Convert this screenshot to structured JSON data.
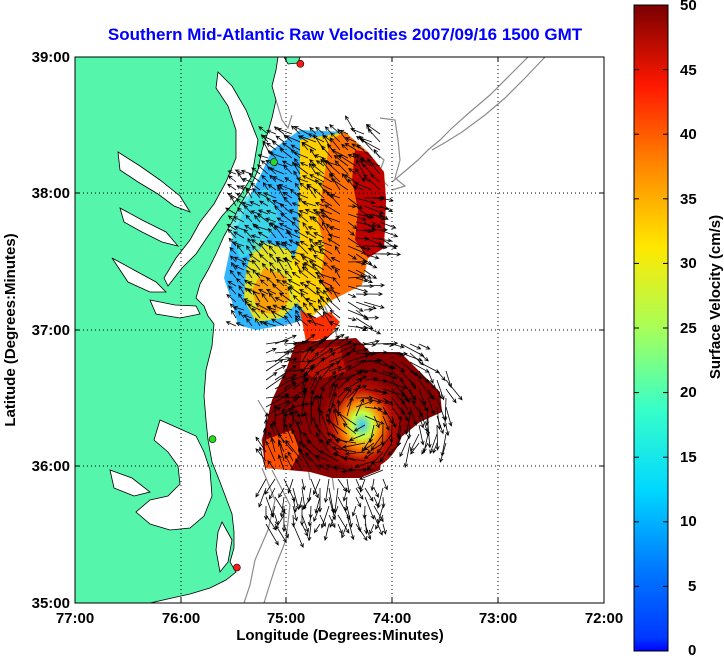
{
  "title": "Southern Mid-Atlantic Raw Velocities 2007/09/16 1500 GMT",
  "axes": {
    "xlabel": "Longitude (Degrees:Minutes)",
    "ylabel": "Latitude (Degrees:Minutes)",
    "x_ticks": [
      "77:00",
      "76:00",
      "75:00",
      "74:00",
      "73:00",
      "72:00"
    ],
    "y_ticks": [
      "39:00",
      "38:00",
      "37:00",
      "36:00",
      "35:00"
    ],
    "x_range": [
      -77,
      -72
    ],
    "y_range": [
      35,
      39
    ],
    "grid": "dotted"
  },
  "colorbar": {
    "label": "Surface Velocity (cm/s)",
    "ticks": [
      "50",
      "45",
      "40",
      "35",
      "30",
      "25",
      "20",
      "15",
      "10",
      "5",
      "0"
    ],
    "range": [
      0,
      50
    ],
    "colormap": "jet"
  },
  "colors": {
    "land": "#55f5ab",
    "coast_outline": "#000000",
    "bathymetry": "#8c8c8c",
    "title": "#0000ff",
    "site_green": "#22dd22",
    "site_red": "#ff1a1a"
  },
  "sites": [
    {
      "color": "red",
      "lon": -74.87,
      "lat": 38.95
    },
    {
      "color": "green",
      "lon": -75.12,
      "lat": 38.23
    },
    {
      "color": "green",
      "lon": -75.7,
      "lat": 36.2
    },
    {
      "color": "red",
      "lon": -75.47,
      "lat": 35.26
    }
  ]
}
